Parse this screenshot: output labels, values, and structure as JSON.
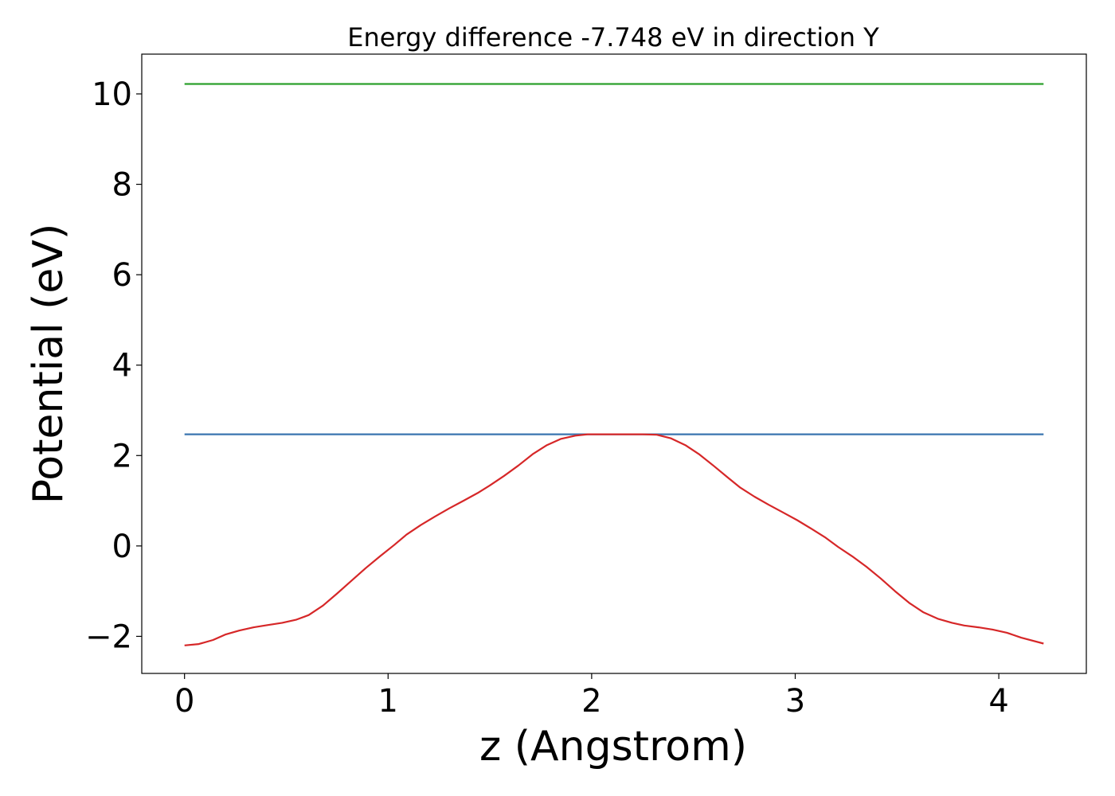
{
  "chart_data": {
    "type": "line",
    "title": "Energy difference -7.748 eV in direction Y",
    "xlabel": "z (Angstrom)",
    "ylabel": "Potential (eV)",
    "xlim": [
      -0.21,
      4.43
    ],
    "ylim": [
      -2.82,
      10.88
    ],
    "xticks": [
      0,
      1,
      2,
      3,
      4
    ],
    "yticks": [
      -2,
      0,
      2,
      4,
      6,
      8,
      10
    ],
    "ytick_labels": [
      "−2",
      "0",
      "2",
      "4",
      "6",
      "8",
      "10"
    ],
    "grid": false,
    "series": [
      {
        "color": "#2ca02c",
        "x": [
          0,
          4.22
        ],
        "y": [
          10.22,
          10.22
        ]
      },
      {
        "color": "#3a75b0",
        "x": [
          0,
          4.22
        ],
        "y": [
          2.47,
          2.47
        ]
      },
      {
        "color": "#d62728",
        "x": [
          0,
          0.07,
          0.14,
          0.2,
          0.27,
          0.34,
          0.41,
          0.48,
          0.55,
          0.61,
          0.68,
          0.75,
          0.82,
          0.89,
          0.96,
          1.03,
          1.09,
          1.16,
          1.23,
          1.3,
          1.37,
          1.44,
          1.5,
          1.57,
          1.64,
          1.71,
          1.78,
          1.85,
          1.92,
          1.98,
          2.05,
          2.11,
          2.18,
          2.25,
          2.32,
          2.39,
          2.46,
          2.53,
          2.6,
          2.67,
          2.73,
          2.8,
          2.87,
          2.94,
          3.01,
          3.08,
          3.15,
          3.21,
          3.28,
          3.35,
          3.42,
          3.49,
          3.56,
          3.63,
          3.7,
          3.77,
          3.83,
          3.9,
          3.97,
          4.04,
          4.11,
          4.22
        ],
        "y": [
          -2.2,
          -2.17,
          -2.08,
          -1.96,
          -1.87,
          -1.8,
          -1.75,
          -1.7,
          -1.63,
          -1.53,
          -1.32,
          -1.05,
          -0.77,
          -0.49,
          -0.23,
          0.02,
          0.25,
          0.46,
          0.65,
          0.83,
          1.0,
          1.17,
          1.34,
          1.55,
          1.78,
          2.03,
          2.23,
          2.37,
          2.44,
          2.47,
          2.47,
          2.47,
          2.47,
          2.47,
          2.46,
          2.38,
          2.23,
          2.02,
          1.77,
          1.51,
          1.29,
          1.09,
          0.91,
          0.74,
          0.57,
          0.38,
          0.18,
          -0.02,
          -0.23,
          -0.46,
          -0.72,
          -1.0,
          -1.26,
          -1.47,
          -1.61,
          -1.7,
          -1.76,
          -1.8,
          -1.85,
          -1.92,
          -2.03,
          -2.16
        ]
      }
    ]
  }
}
